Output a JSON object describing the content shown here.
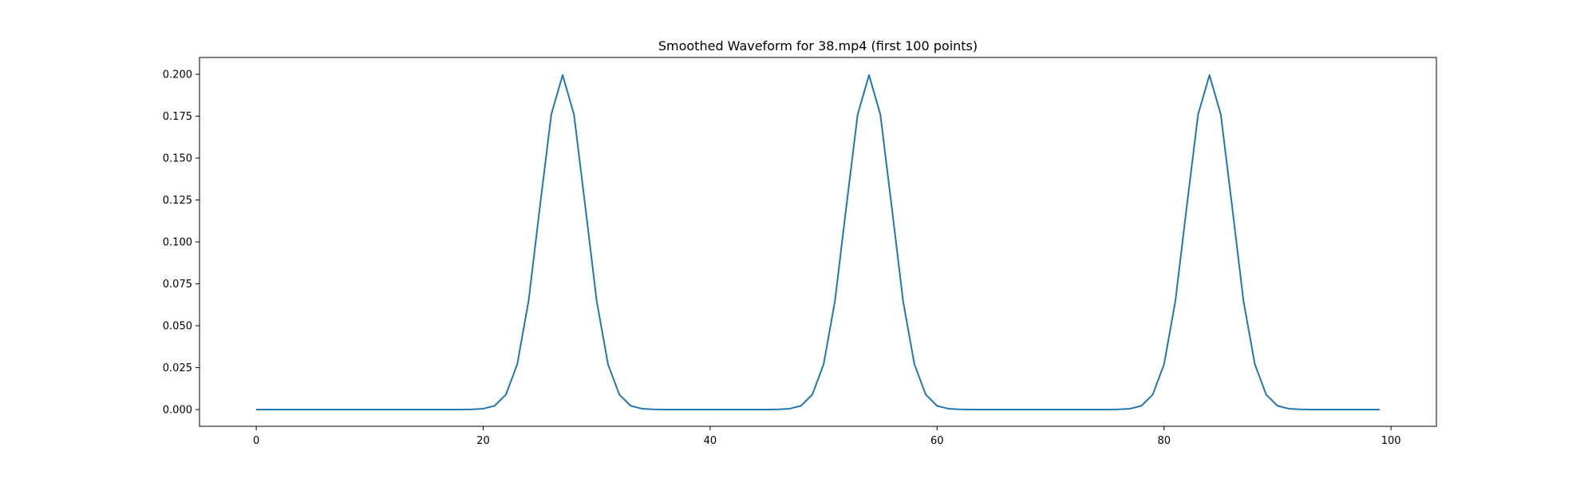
{
  "chart_data": {
    "type": "line",
    "title": "Smoothed Waveform for 38.mp4 (first 100 points)",
    "xlabel": "",
    "ylabel": "",
    "xlim": [
      -5,
      104
    ],
    "ylim": [
      -0.01,
      0.21
    ],
    "grid": false,
    "x_ticks": [
      0,
      20,
      40,
      60,
      80,
      100
    ],
    "x_tick_labels": [
      "0",
      "20",
      "40",
      "60",
      "80",
      "100"
    ],
    "y_ticks": [
      0.0,
      0.025,
      0.05,
      0.075,
      0.1,
      0.125,
      0.15,
      0.175,
      0.2
    ],
    "y_tick_labels": [
      "0.000",
      "0.025",
      "0.050",
      "0.075",
      "0.100",
      "0.125",
      "0.150",
      "0.175",
      "0.200"
    ],
    "series": [
      {
        "color": "#1f77b4",
        "x": [
          0,
          1,
          2,
          3,
          4,
          5,
          6,
          7,
          8,
          9,
          10,
          11,
          12,
          13,
          14,
          15,
          16,
          17,
          18,
          19,
          20,
          21,
          22,
          23,
          24,
          25,
          26,
          27,
          28,
          29,
          30,
          31,
          32,
          33,
          34,
          35,
          36,
          37,
          38,
          39,
          40,
          41,
          42,
          43,
          44,
          45,
          46,
          47,
          48,
          49,
          50,
          51,
          52,
          53,
          54,
          55,
          56,
          57,
          58,
          59,
          60,
          61,
          62,
          63,
          64,
          65,
          66,
          67,
          68,
          69,
          70,
          71,
          72,
          73,
          74,
          75,
          76,
          77,
          78,
          79,
          80,
          81,
          82,
          83,
          84,
          85,
          86,
          87,
          88,
          89,
          90,
          91,
          92,
          93,
          94,
          95,
          96,
          97,
          98,
          99
        ],
        "values": [
          0,
          0,
          0,
          0,
          0,
          0,
          0,
          0,
          0,
          0,
          0,
          0,
          0,
          0,
          0,
          0,
          0,
          0,
          0,
          0.0001,
          0.0005,
          0.0022,
          0.0089,
          0.027,
          0.0648,
          0.121,
          0.176,
          0.1995,
          0.176,
          0.121,
          0.0648,
          0.027,
          0.0089,
          0.0022,
          0.0005,
          0.0001,
          0,
          0,
          0,
          0,
          0,
          0,
          0,
          0,
          0,
          0,
          0.0001,
          0.0005,
          0.0022,
          0.0089,
          0.027,
          0.0648,
          0.121,
          0.176,
          0.1995,
          0.176,
          0.121,
          0.0648,
          0.027,
          0.0089,
          0.0022,
          0.0005,
          0.0001,
          0,
          0,
          0,
          0,
          0,
          0,
          0,
          0,
          0,
          0,
          0,
          0,
          0,
          0.0001,
          0.0005,
          0.0022,
          0.0089,
          0.027,
          0.0648,
          0.121,
          0.176,
          0.1995,
          0.176,
          0.121,
          0.0648,
          0.027,
          0.0089,
          0.0022,
          0.0005,
          0.0001,
          0,
          0,
          0,
          0,
          0,
          0,
          0
        ]
      }
    ]
  }
}
